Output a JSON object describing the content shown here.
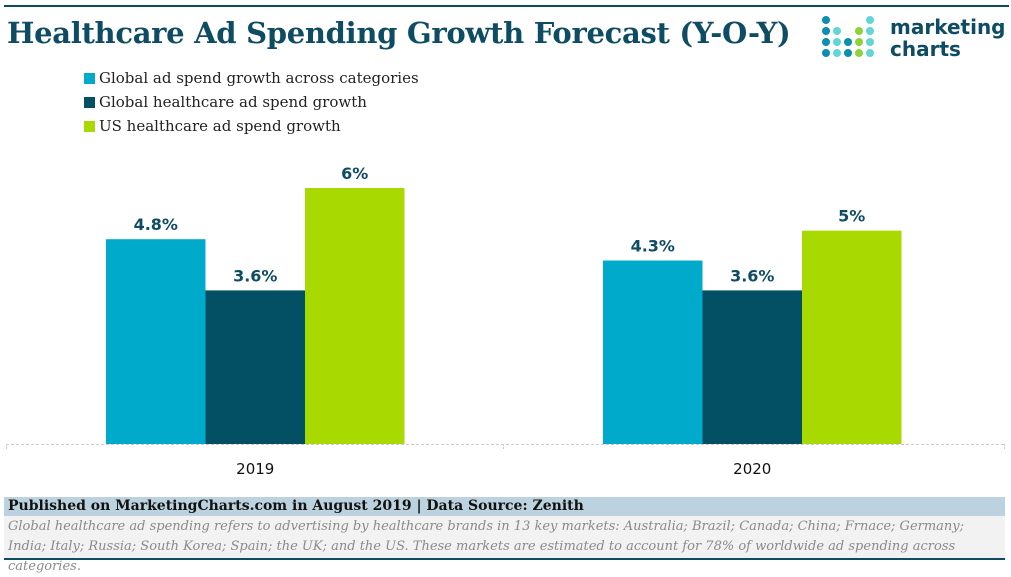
{
  "header": {
    "title": "Healthcare Ad Spending Growth Forecast (Y-O-Y)",
    "logo": {
      "line1": "marketing",
      "line2": "charts",
      "icon": "dot-grid-logo-icon"
    }
  },
  "colors": {
    "brand_dark": "#0e4c63",
    "series_global_all": "#00aacb",
    "series_global_health": "#034f64",
    "series_us_health": "#a8d900",
    "logo_light": "#62d6d6",
    "logo_green": "#8ed23a"
  },
  "chart_data": {
    "type": "bar",
    "title": "Healthcare Ad Spending Growth Forecast (Y-O-Y)",
    "xlabel": "",
    "ylabel": "",
    "categories": [
      "2019",
      "2020"
    ],
    "series": [
      {
        "name": "Global ad spend growth across categories",
        "values": [
          4.8,
          4.3
        ],
        "labels": [
          "4.8%",
          "4.3%"
        ],
        "color": "#00aacb"
      },
      {
        "name": "Global healthcare ad spend growth",
        "values": [
          3.6,
          3.6
        ],
        "labels": [
          "3.6%",
          "3.6%"
        ],
        "color": "#034f64"
      },
      {
        "name": "US healthcare ad spend growth",
        "values": [
          6,
          5
        ],
        "labels": [
          "6%",
          "5%"
        ],
        "color": "#a8d900"
      }
    ],
    "ylim": [
      0,
      7
    ],
    "y_axis_visible": false,
    "grid": false,
    "legend_position": "top-left",
    "unit": "%"
  },
  "footer": {
    "published": "Published on MarketingCharts.com in August 2019 | Data Source: Zenith",
    "note": "Global healthcare ad spending refers to advertising by healthcare brands in 13 key markets: Australia; Brazil; Canada; China; Frnace; Germany; India; Italy; Russia; South Korea; Spain; the UK; and the US. These markets are estimated to account for 78% of worldwide ad spending across categories."
  }
}
